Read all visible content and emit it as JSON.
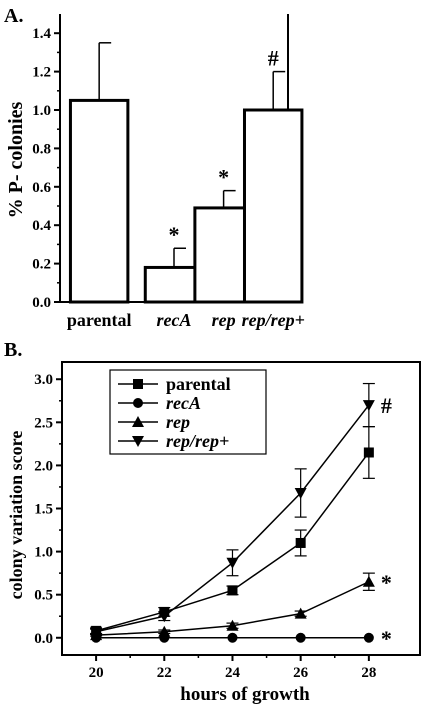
{
  "chart_data": [
    {
      "panel": "A.",
      "type": "bar",
      "ylabel": "% P- colonies",
      "ylim": [
        0,
        1.5
      ],
      "yticks": [
        "0.0",
        "0.2",
        "0.4",
        "0.6",
        "0.8",
        "1.0",
        "1.2",
        "1.4"
      ],
      "categories": [
        "parental",
        "recA",
        "rep",
        "rep/rep+"
      ],
      "values": [
        1.05,
        0.18,
        0.49,
        1.0
      ],
      "error_upper": [
        1.35,
        0.28,
        0.58,
        1.2
      ],
      "annotations": [
        "",
        "*",
        "*",
        "#"
      ],
      "grid": false
    },
    {
      "panel": "B.",
      "type": "line",
      "xlabel": "hours of growth",
      "ylabel": "colony variation score",
      "xlim": [
        19,
        29.5
      ],
      "ylim": [
        -0.2,
        3.2
      ],
      "x": [
        20,
        22,
        24,
        26,
        28
      ],
      "xticks": [
        "20",
        "22",
        "24",
        "26",
        "28"
      ],
      "yticks": [
        "0.0",
        "0.5",
        "1.0",
        "1.5",
        "2.0",
        "2.5",
        "3.0"
      ],
      "legend_position": "top-left",
      "series": [
        {
          "name": "parental",
          "marker": "square",
          "values": [
            0.08,
            0.3,
            0.55,
            1.1,
            2.15
          ],
          "errors": [
            0.03,
            0.05,
            0.05,
            0.15,
            0.3
          ]
        },
        {
          "name": "recA",
          "marker": "circle",
          "values": [
            0.0,
            0.0,
            0.0,
            0.0,
            0.0
          ],
          "errors": [
            0,
            0,
            0,
            0,
            0
          ]
        },
        {
          "name": "rep",
          "marker": "triangle-up",
          "values": [
            0.03,
            0.07,
            0.14,
            0.28,
            0.65
          ],
          "errors": [
            0.01,
            0.02,
            0.03,
            0.03,
            0.1
          ]
        },
        {
          "name": "rep/rep+",
          "marker": "triangle-down",
          "values": [
            0.07,
            0.25,
            0.87,
            1.68,
            2.7
          ],
          "errors": [
            0.03,
            0.05,
            0.15,
            0.28,
            0.25
          ]
        }
      ],
      "annotations": [
        {
          "series": "rep/rep+",
          "text": "#"
        },
        {
          "series": "rep",
          "text": "*"
        },
        {
          "series": "recA",
          "text": "*"
        }
      ],
      "grid": false
    }
  ]
}
